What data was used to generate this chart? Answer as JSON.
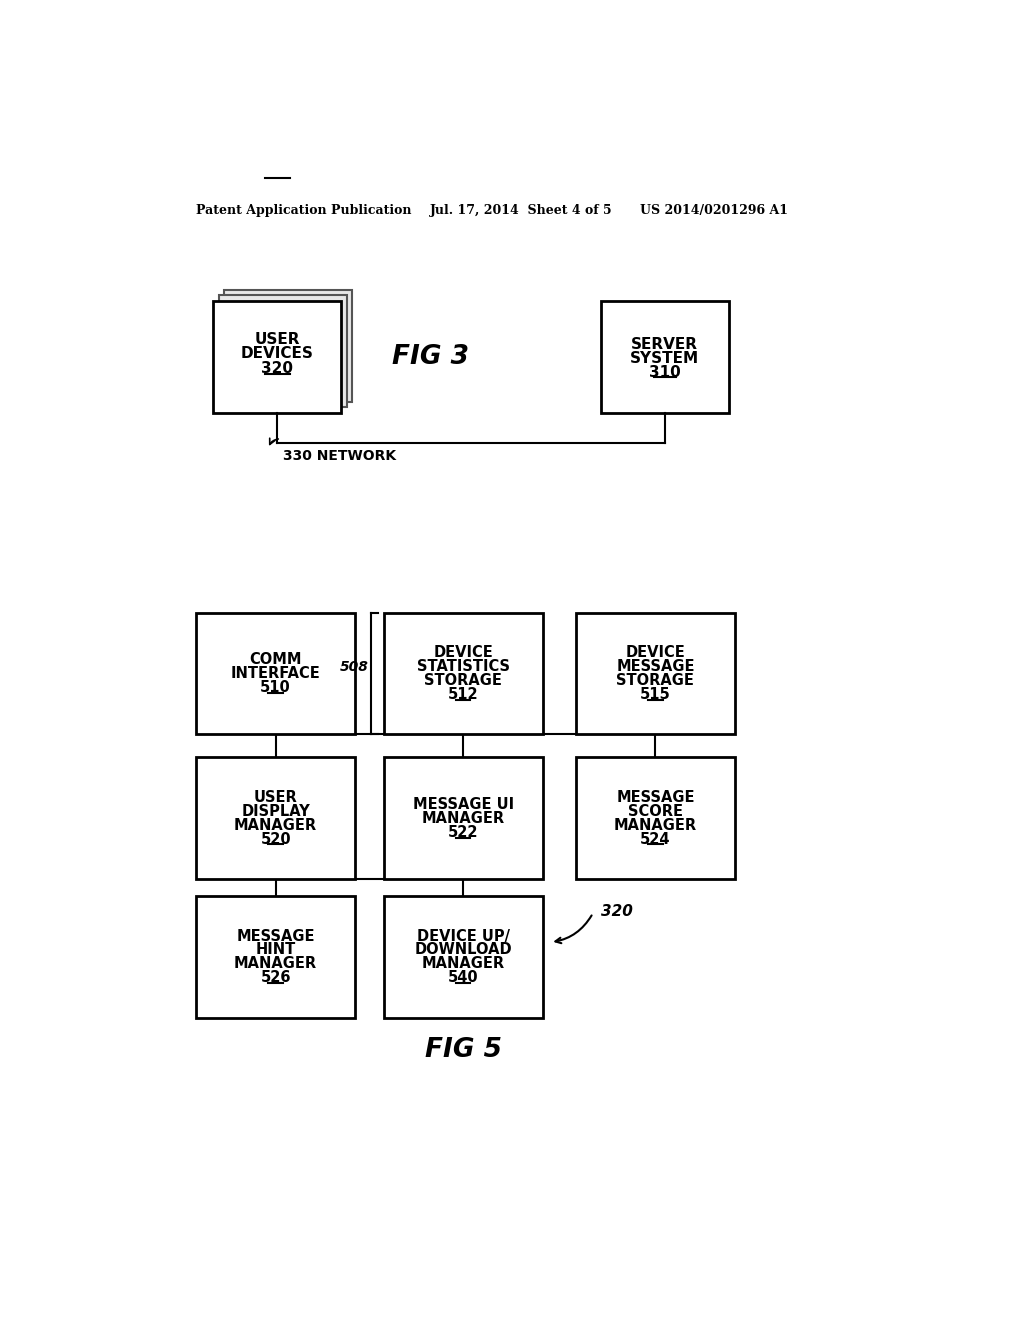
{
  "header_left": "Patent Application Publication",
  "header_mid": "Jul. 17, 2014  Sheet 4 of 5",
  "header_right": "US 2014/0201296 A1",
  "fig3_label": "FIG 3",
  "fig5_label": "FIG 5",
  "bg_color": "#ffffff",
  "box_edge": "#000000",
  "text_color": "#000000",
  "fig3": {
    "network_label": "330 NETWORK"
  },
  "fig5": {
    "label_508": "508",
    "label_320": "320"
  }
}
